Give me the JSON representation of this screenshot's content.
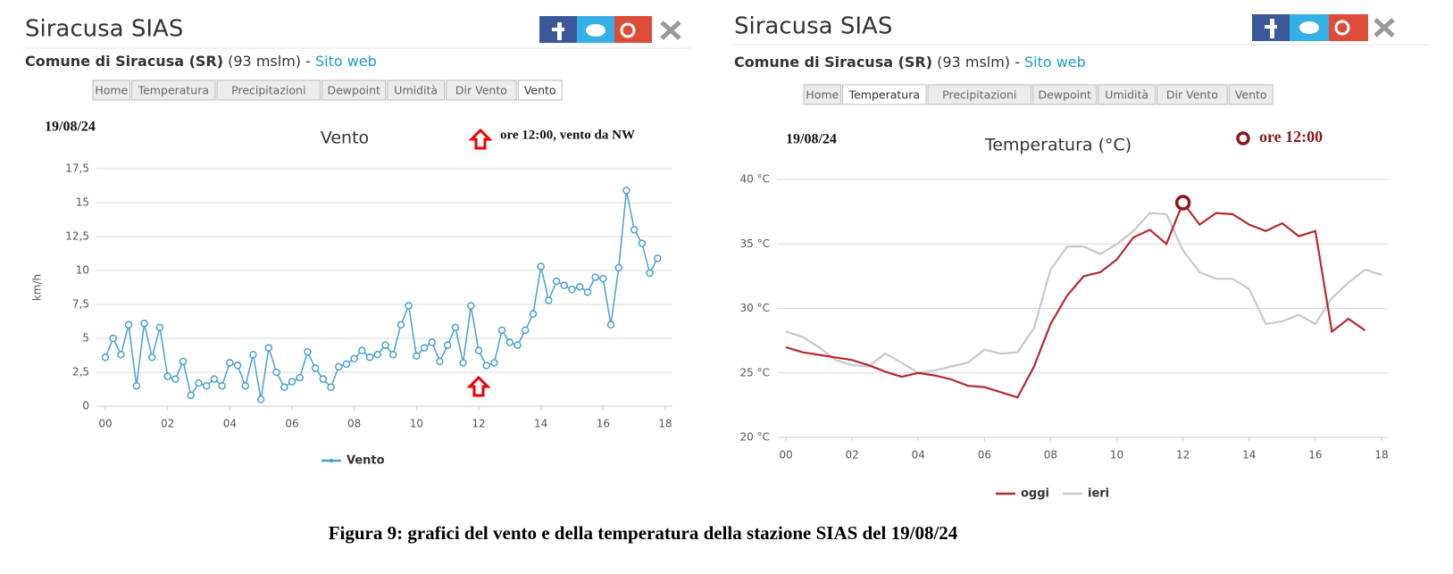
{
  "panels": [
    {
      "title": "Siracusa SIAS",
      "place": "Comune di Siracusa (SR)",
      "elevation": " (93 mslm) - ",
      "link": "Sito web",
      "tabs": [
        "Home",
        "Temperatura",
        "Precipitazioni",
        "Dewpoint",
        "Umidità",
        "Dir Vento",
        "Vento"
      ],
      "active_tab": 6
    },
    {
      "title": "Siracusa SIAS",
      "place": "Comune di Siracusa (SR)",
      "elevation": " (93 mslm) - ",
      "link": "Sito web",
      "tabs": [
        "Home",
        "Temperatura",
        "Precipitazioni",
        "Dewpoint",
        "Umidità",
        "Dir Vento",
        "Vento"
      ],
      "active_tab": 1
    }
  ],
  "chart_data": [
    {
      "type": "line",
      "title": "Vento",
      "date": "19/08/24",
      "annotation": "ore 12:00, vento da NW",
      "highlight_x": 12,
      "y_label": "km/h",
      "grid": true,
      "marker": "circle",
      "x": [
        0,
        0.25,
        0.5,
        0.75,
        1,
        1.25,
        1.5,
        1.75,
        2,
        2.25,
        2.5,
        2.75,
        3,
        3.25,
        3.5,
        3.75,
        4,
        4.25,
        4.5,
        4.75,
        5,
        5.25,
        5.5,
        5.75,
        6,
        6.25,
        6.5,
        6.75,
        7,
        7.25,
        7.5,
        7.75,
        8,
        8.25,
        8.5,
        8.75,
        9,
        9.25,
        9.5,
        9.75,
        10,
        10.25,
        10.5,
        10.75,
        11,
        11.25,
        11.5,
        11.75,
        12,
        12.25,
        12.5,
        12.75,
        13,
        13.25,
        13.5,
        13.75,
        14,
        14.25,
        14.5,
        14.75,
        15,
        15.25,
        15.5,
        15.75,
        16,
        16.25,
        16.5,
        16.75,
        17,
        17.25,
        17.5,
        17.75
      ],
      "series": [
        {
          "name": "Vento",
          "color": "#4a9fd4",
          "values": [
            3.6,
            5.0,
            3.8,
            6.0,
            1.5,
            6.1,
            3.6,
            5.8,
            2.2,
            2.0,
            3.3,
            0.8,
            1.7,
            1.5,
            2.0,
            1.5,
            3.2,
            3.0,
            1.5,
            3.8,
            0.5,
            4.3,
            2.5,
            1.4,
            1.8,
            2.1,
            4.0,
            2.8,
            2.0,
            1.4,
            2.9,
            3.1,
            3.5,
            4.1,
            3.6,
            3.8,
            4.5,
            3.8,
            6.0,
            7.4,
            3.7,
            4.3,
            4.7,
            3.3,
            4.5,
            5.8,
            3.2,
            7.4,
            4.1,
            3.0,
            3.2,
            5.6,
            4.7,
            4.5,
            5.6,
            6.8,
            10.3,
            7.8,
            9.2,
            8.9,
            8.6,
            8.8,
            8.4,
            9.5,
            9.4,
            6.0,
            10.2,
            15.9,
            13.0,
            12.0,
            9.8,
            10.9
          ]
        }
      ],
      "xlim": [
        0,
        18
      ],
      "xticks": [
        {
          "value": 0,
          "label": "00"
        },
        {
          "value": 2,
          "label": "02"
        },
        {
          "value": 4,
          "label": "04"
        },
        {
          "value": 6,
          "label": "06"
        },
        {
          "value": 8,
          "label": "08"
        },
        10,
        12,
        14,
        16,
        18
      ],
      "ylim": [
        0,
        17.5
      ],
      "yticks": [
        0,
        {
          "value": 2.5,
          "label": "2,5"
        },
        5,
        {
          "value": 7.5,
          "label": "7,5"
        },
        10,
        {
          "value": 12.5,
          "label": "12,5"
        },
        15,
        {
          "value": 17.5,
          "label": "17,5"
        }
      ]
    },
    {
      "type": "line",
      "title": "Temperatura (°C)",
      "date": "19/08/24",
      "annotation": "ore 12:00",
      "highlight_x": 12,
      "grid": true,
      "x": [
        0,
        0.5,
        1,
        1.5,
        2,
        2.5,
        3,
        3.5,
        4,
        4.5,
        5,
        5.5,
        6,
        6.5,
        7,
        7.5,
        8,
        8.5,
        9,
        9.5,
        10,
        10.5,
        11,
        11.5,
        12,
        12.5,
        13,
        13.5,
        14,
        14.5,
        15,
        15.5,
        16,
        16.5,
        17,
        17.5,
        18
      ],
      "series": [
        {
          "name": "oggi",
          "color": "#b5292e",
          "values": [
            27.0,
            26.6,
            26.4,
            26.2,
            26.0,
            25.6,
            25.1,
            24.7,
            25.0,
            24.8,
            24.5,
            24.0,
            23.9,
            23.5,
            23.1,
            25.5,
            28.8,
            31.0,
            32.5,
            32.8,
            33.8,
            35.5,
            36.1,
            35.0,
            38.2,
            36.5,
            37.4,
            37.3,
            36.5,
            36.0,
            36.6,
            35.6,
            36.0,
            28.2,
            29.2,
            28.3,
            null
          ]
        },
        {
          "name": "ieri",
          "color": "#c8c8c8",
          "values": [
            28.2,
            27.8,
            27.0,
            26.0,
            25.6,
            25.5,
            26.5,
            25.8,
            25.0,
            25.2,
            25.5,
            25.8,
            26.8,
            26.5,
            26.6,
            28.5,
            33.0,
            34.8,
            34.8,
            34.2,
            35.0,
            36.0,
            37.4,
            37.3,
            34.5,
            32.8,
            32.3,
            32.3,
            31.5,
            28.8,
            29.0,
            29.5,
            28.8,
            30.8,
            32.0,
            33.0,
            32.6
          ]
        }
      ],
      "xlim": [
        0,
        18
      ],
      "xticks": [
        {
          "value": 0,
          "label": "00"
        },
        {
          "value": 2,
          "label": "02"
        },
        {
          "value": 4,
          "label": "04"
        },
        {
          "value": 6,
          "label": "06"
        },
        {
          "value": 8,
          "label": "08"
        },
        10,
        12,
        14,
        16,
        18
      ],
      "ylim": [
        20,
        40
      ],
      "yticks": [
        {
          "value": 20,
          "label": "20 °C"
        },
        {
          "value": 25,
          "label": "25 °C"
        },
        {
          "value": 30,
          "label": "30 °C"
        },
        {
          "value": 35,
          "label": "35 °C"
        },
        {
          "value": 40,
          "label": "40 °C"
        }
      ]
    }
  ],
  "caption": "Figura 9: grafici del vento e della temperatura della stazione SIAS del 19/08/24"
}
